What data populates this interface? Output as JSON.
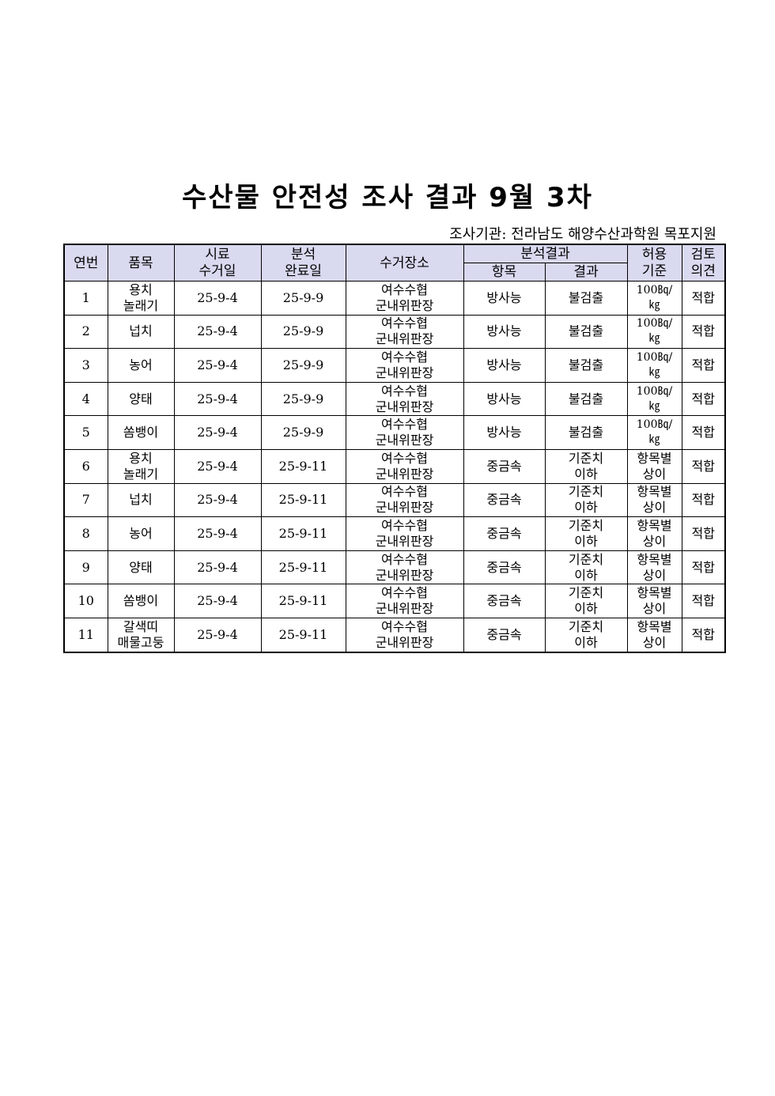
{
  "title": "수산물 안전성 조사 결과 9월 3차",
  "agency": "조사기관: 전라남도 해양수산과학원 목포지원",
  "headers": {
    "no": "연번",
    "item": "품목",
    "sample_date": [
      "시료",
      "수거일"
    ],
    "analysis_date": [
      "분석",
      "완료일"
    ],
    "place": "수거장소",
    "result_group": "분석결과",
    "test_item": "항목",
    "result": "결과",
    "standard": [
      "허용",
      "기준"
    ],
    "opinion": [
      "검토",
      "의견"
    ]
  },
  "rows": [
    {
      "no": "1",
      "item": [
        "용치",
        "놀래기"
      ],
      "sample": "25-9-4",
      "done": "25-9-9",
      "place": [
        "여수수협",
        "군내위판장"
      ],
      "test": "방사능",
      "result": [
        "불검출"
      ],
      "std": [
        "100㏃/",
        "㎏"
      ],
      "op": "적합"
    },
    {
      "no": "2",
      "item": [
        "넙치"
      ],
      "sample": "25-9-4",
      "done": "25-9-9",
      "place": [
        "여수수협",
        "군내위판장"
      ],
      "test": "방사능",
      "result": [
        "불검출"
      ],
      "std": [
        "100㏃/",
        "㎏"
      ],
      "op": "적합"
    },
    {
      "no": "3",
      "item": [
        "농어"
      ],
      "sample": "25-9-4",
      "done": "25-9-9",
      "place": [
        "여수수협",
        "군내위판장"
      ],
      "test": "방사능",
      "result": [
        "불검출"
      ],
      "std": [
        "100㏃/",
        "㎏"
      ],
      "op": "적합"
    },
    {
      "no": "4",
      "item": [
        "양태"
      ],
      "sample": "25-9-4",
      "done": "25-9-9",
      "place": [
        "여수수협",
        "군내위판장"
      ],
      "test": "방사능",
      "result": [
        "불검출"
      ],
      "std": [
        "100㏃/",
        "㎏"
      ],
      "op": "적합"
    },
    {
      "no": "5",
      "item": [
        "쏨뱅이"
      ],
      "sample": "25-9-4",
      "done": "25-9-9",
      "place": [
        "여수수협",
        "군내위판장"
      ],
      "test": "방사능",
      "result": [
        "불검출"
      ],
      "std": [
        "100㏃/",
        "㎏"
      ],
      "op": "적합"
    },
    {
      "no": "6",
      "item": [
        "용치",
        "놀래기"
      ],
      "sample": "25-9-4",
      "done": "25-9-11",
      "place": [
        "여수수협",
        "군내위판장"
      ],
      "test": "중금속",
      "result": [
        "기준치",
        "이하"
      ],
      "std": [
        "항목별",
        "상이"
      ],
      "op": "적합"
    },
    {
      "no": "7",
      "item": [
        "넙치"
      ],
      "sample": "25-9-4",
      "done": "25-9-11",
      "place": [
        "여수수협",
        "군내위판장"
      ],
      "test": "중금속",
      "result": [
        "기준치",
        "이하"
      ],
      "std": [
        "항목별",
        "상이"
      ],
      "op": "적합"
    },
    {
      "no": "8",
      "item": [
        "농어"
      ],
      "sample": "25-9-4",
      "done": "25-9-11",
      "place": [
        "여수수협",
        "군내위판장"
      ],
      "test": "중금속",
      "result": [
        "기준치",
        "이하"
      ],
      "std": [
        "항목별",
        "상이"
      ],
      "op": "적합"
    },
    {
      "no": "9",
      "item": [
        "양태"
      ],
      "sample": "25-9-4",
      "done": "25-9-11",
      "place": [
        "여수수협",
        "군내위판장"
      ],
      "test": "중금속",
      "result": [
        "기준치",
        "이하"
      ],
      "std": [
        "항목별",
        "상이"
      ],
      "op": "적합"
    },
    {
      "no": "10",
      "item": [
        "쏨뱅이"
      ],
      "sample": "25-9-4",
      "done": "25-9-11",
      "place": [
        "여수수협",
        "군내위판장"
      ],
      "test": "중금속",
      "result": [
        "기준치",
        "이하"
      ],
      "std": [
        "항목별",
        "상이"
      ],
      "op": "적합"
    },
    {
      "no": "11",
      "item": [
        "갈색띠",
        "매물고둥"
      ],
      "sample": "25-9-4",
      "done": "25-9-11",
      "place": [
        "여수수협",
        "군내위판장"
      ],
      "test": "중금속",
      "result": [
        "기준치",
        "이하"
      ],
      "std": [
        "항목별",
        "상이"
      ],
      "op": "적합"
    }
  ],
  "colors": {
    "header_bg": "#d9d9f0"
  }
}
